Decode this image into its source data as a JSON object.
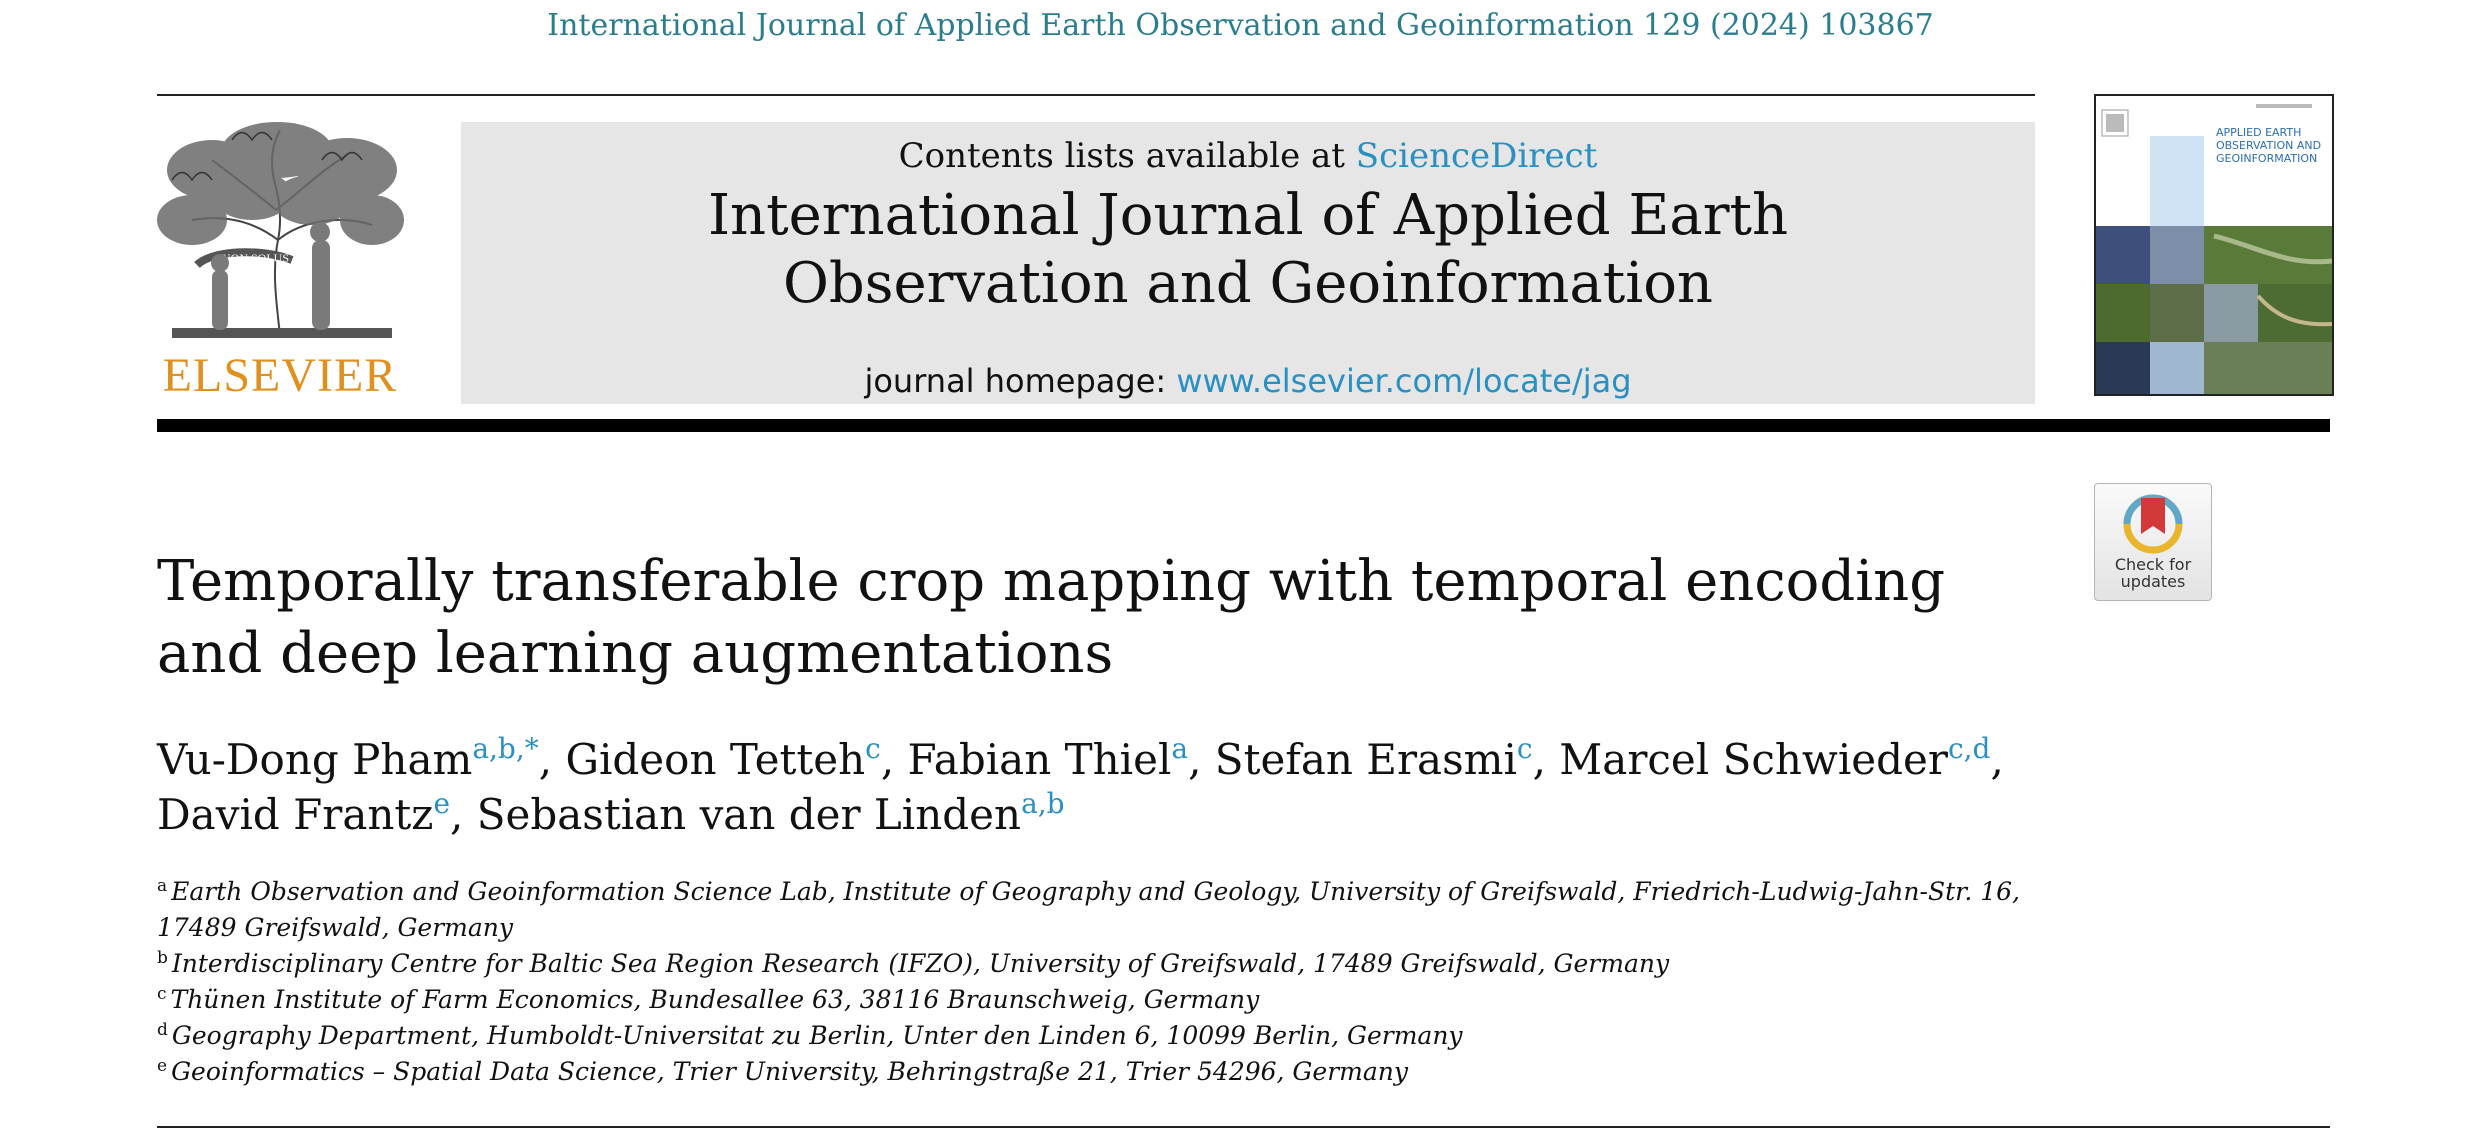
{
  "header": {
    "citation": "International Journal of Applied Earth Observation and Geoinformation 129 (2024) 103867"
  },
  "masthead": {
    "contents_prefix": "Contents lists available at ",
    "contents_link": "ScienceDirect",
    "journal_title_line1": "International Journal of Applied Earth",
    "journal_title_line2": "Observation and Geoinformation",
    "homepage_prefix": "journal homepage: ",
    "homepage_link": "www.elsevier.com/locate/jag"
  },
  "logo": {
    "wordmark": "ELSEVIER",
    "motto": "NON SOLUS",
    "color": "#e0901e"
  },
  "cover": {
    "title_line1": "APPLIED EARTH",
    "title_line2": "OBSERVATION AND",
    "title_line3": "GEOINFORMATION"
  },
  "check_badge": {
    "line1": "Check for",
    "line2": "updates"
  },
  "article": {
    "title": "Temporally transferable crop mapping with temporal encoding and deep learning augmentations"
  },
  "authors": [
    {
      "name": "Vu-Dong Pham",
      "sup": "a,b,*",
      "sep": ", "
    },
    {
      "name": "Gideon Tetteh",
      "sup": "c",
      "sep": ", "
    },
    {
      "name": "Fabian Thiel",
      "sup": "a",
      "sep": ", "
    },
    {
      "name": "Stefan Erasmi",
      "sup": "c",
      "sep": ", "
    },
    {
      "name": "Marcel Schwieder",
      "sup": "c,d",
      "sep": ","
    },
    {
      "name": "David Frantz",
      "sup": "e",
      "sep": ", "
    },
    {
      "name": "Sebastian van der Linden",
      "sup": "a,b",
      "sep": ""
    }
  ],
  "affiliations": [
    {
      "mark": "a",
      "text": "Earth Observation and Geoinformation Science Lab, Institute of Geography and Geology, University of Greifswald, Friedrich-Ludwig-Jahn-Str. 16, 17489 Greifswald, Germany"
    },
    {
      "mark": "b",
      "text": "Interdisciplinary Centre for Baltic Sea Region Research (IFZO), University of Greifswald, 17489 Greifswald, Germany"
    },
    {
      "mark": "c",
      "text": "Thünen Institute of Farm Economics, Bundesallee 63, 38116 Braunschweig, Germany"
    },
    {
      "mark": "d",
      "text": "Geography Department, Humboldt-Universitat zu Berlin, Unter den Linden 6, 10099 Berlin, Germany"
    },
    {
      "mark": "e",
      "text": "Geoinformatics – Spatial Data Science, Trier University, Behringstraße 21, Trier 54296, Germany"
    }
  ]
}
